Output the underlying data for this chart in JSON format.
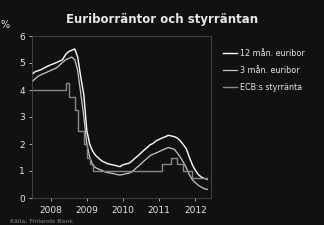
{
  "title": "Euriborräntor och styrräntan",
  "ylabel": "%",
  "source": "Källa: Finlands Bank",
  "ylim": [
    0,
    6
  ],
  "yticks": [
    0,
    1,
    2,
    3,
    4,
    5,
    6
  ],
  "background_color": "#111111",
  "text_color": "#e8e8e8",
  "legend": [
    "12 mån. euribor",
    "3 mån. euribor",
    "ECB:s styrränta"
  ],
  "color_12m": "#ffffff",
  "color_3m": "#c8c8c8",
  "color_ecb": "#888888",
  "dates_12m": [
    2007.5,
    2007.58,
    2007.67,
    2007.75,
    2007.83,
    2007.92,
    2008.0,
    2008.08,
    2008.17,
    2008.25,
    2008.33,
    2008.42,
    2008.5,
    2008.58,
    2008.67,
    2008.75,
    2008.83,
    2008.92,
    2009.0,
    2009.08,
    2009.17,
    2009.25,
    2009.33,
    2009.42,
    2009.5,
    2009.58,
    2009.67,
    2009.75,
    2009.83,
    2009.92,
    2010.0,
    2010.08,
    2010.17,
    2010.25,
    2010.33,
    2010.42,
    2010.5,
    2010.58,
    2010.67,
    2010.75,
    2010.83,
    2010.92,
    2011.0,
    2011.08,
    2011.17,
    2011.25,
    2011.33,
    2011.42,
    2011.5,
    2011.58,
    2011.67,
    2011.75,
    2011.83,
    2011.92,
    2012.0,
    2012.08,
    2012.17,
    2012.25,
    2012.33
  ],
  "vals_12m": [
    4.6,
    4.68,
    4.72,
    4.76,
    4.82,
    4.88,
    4.93,
    4.97,
    5.02,
    5.07,
    5.12,
    5.32,
    5.42,
    5.47,
    5.52,
    5.22,
    4.52,
    3.82,
    2.52,
    2.0,
    1.72,
    1.57,
    1.47,
    1.37,
    1.32,
    1.27,
    1.24,
    1.22,
    1.19,
    1.16,
    1.23,
    1.26,
    1.29,
    1.37,
    1.47,
    1.57,
    1.67,
    1.77,
    1.87,
    1.97,
    2.02,
    2.12,
    2.17,
    2.22,
    2.27,
    2.32,
    2.3,
    2.27,
    2.22,
    2.12,
    1.97,
    1.82,
    1.52,
    1.22,
    1.02,
    0.87,
    0.77,
    0.72,
    0.7
  ],
  "dates_3m": [
    2007.5,
    2007.58,
    2007.67,
    2007.75,
    2007.83,
    2007.92,
    2008.0,
    2008.08,
    2008.17,
    2008.25,
    2008.33,
    2008.42,
    2008.5,
    2008.58,
    2008.67,
    2008.75,
    2008.83,
    2008.92,
    2009.0,
    2009.08,
    2009.17,
    2009.25,
    2009.33,
    2009.42,
    2009.5,
    2009.58,
    2009.67,
    2009.75,
    2009.83,
    2009.92,
    2010.0,
    2010.08,
    2010.17,
    2010.25,
    2010.33,
    2010.42,
    2010.5,
    2010.58,
    2010.67,
    2010.75,
    2010.83,
    2010.92,
    2011.0,
    2011.08,
    2011.17,
    2011.25,
    2011.33,
    2011.42,
    2011.5,
    2011.58,
    2011.67,
    2011.75,
    2011.83,
    2011.92,
    2012.0,
    2012.08,
    2012.17,
    2012.25,
    2012.33
  ],
  "vals_3m": [
    4.32,
    4.42,
    4.52,
    4.57,
    4.62,
    4.67,
    4.72,
    4.77,
    4.82,
    4.92,
    5.02,
    5.12,
    5.17,
    5.22,
    5.12,
    4.72,
    3.92,
    3.02,
    2.02,
    1.52,
    1.22,
    1.12,
    1.07,
    1.02,
    0.97,
    0.94,
    0.92,
    0.9,
    0.87,
    0.85,
    0.87,
    0.9,
    0.92,
    0.97,
    1.07,
    1.17,
    1.27,
    1.37,
    1.47,
    1.57,
    1.62,
    1.67,
    1.72,
    1.77,
    1.82,
    1.87,
    1.84,
    1.8,
    1.67,
    1.52,
    1.32,
    1.12,
    0.87,
    0.67,
    0.57,
    0.47,
    0.4,
    0.34,
    0.32
  ],
  "dates_ecb": [
    2007.5,
    2008.42,
    2008.42,
    2008.5,
    2008.5,
    2008.67,
    2008.67,
    2008.75,
    2008.75,
    2008.92,
    2008.92,
    2009.0,
    2009.0,
    2009.08,
    2009.08,
    2009.17,
    2009.17,
    2009.25,
    2009.25,
    2010.92,
    2011.08,
    2011.08,
    2011.33,
    2011.33,
    2011.5,
    2011.5,
    2011.67,
    2011.67,
    2011.92,
    2011.92,
    2012.33
  ],
  "vals_ecb": [
    4.0,
    4.0,
    4.25,
    4.25,
    3.75,
    3.75,
    3.25,
    3.25,
    2.5,
    2.5,
    2.0,
    2.0,
    1.5,
    1.5,
    1.25,
    1.25,
    1.0,
    1.0,
    1.0,
    1.0,
    1.0,
    1.25,
    1.25,
    1.5,
    1.5,
    1.25,
    1.25,
    1.0,
    1.0,
    0.75,
    0.75
  ],
  "xlim": [
    2007.5,
    2012.42
  ],
  "xticks": [
    2008,
    2009,
    2010,
    2011,
    2012
  ],
  "xtick_labels": [
    "2008",
    "2009",
    "2010",
    "2011",
    "2012"
  ]
}
